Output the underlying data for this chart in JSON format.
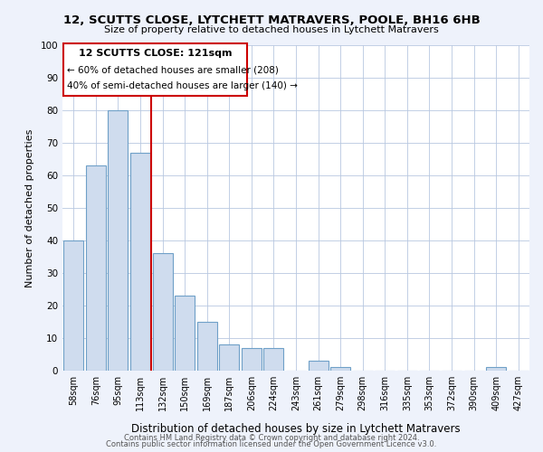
{
  "title": "12, SCUTTS CLOSE, LYTCHETT MATRAVERS, POOLE, BH16 6HB",
  "subtitle": "Size of property relative to detached houses in Lytchett Matravers",
  "xlabel": "Distribution of detached houses by size in Lytchett Matravers",
  "ylabel": "Number of detached properties",
  "bar_labels": [
    "58sqm",
    "76sqm",
    "95sqm",
    "113sqm",
    "132sqm",
    "150sqm",
    "169sqm",
    "187sqm",
    "206sqm",
    "224sqm",
    "243sqm",
    "261sqm",
    "279sqm",
    "298sqm",
    "316sqm",
    "335sqm",
    "353sqm",
    "372sqm",
    "390sqm",
    "409sqm",
    "427sqm"
  ],
  "bar_values": [
    40,
    63,
    80,
    67,
    36,
    23,
    15,
    8,
    7,
    7,
    0,
    3,
    1,
    0,
    0,
    0,
    0,
    0,
    0,
    1,
    0
  ],
  "bar_color": "#cfdcee",
  "bar_edge_color": "#6fa0c8",
  "property_line_label": "12 SCUTTS CLOSE: 121sqm",
  "annotation_line1": "← 60% of detached houses are smaller (208)",
  "annotation_line2": "40% of semi-detached houses are larger (140) →",
  "line_color": "#cc0000",
  "ylim": [
    0,
    100
  ],
  "yticks": [
    0,
    10,
    20,
    30,
    40,
    50,
    60,
    70,
    80,
    90,
    100
  ],
  "footnote1": "Contains HM Land Registry data © Crown copyright and database right 2024.",
  "footnote2": "Contains public sector information licensed under the Open Government Licence v3.0.",
  "bg_color": "#eef2fb",
  "plot_bg_color": "#ffffff"
}
